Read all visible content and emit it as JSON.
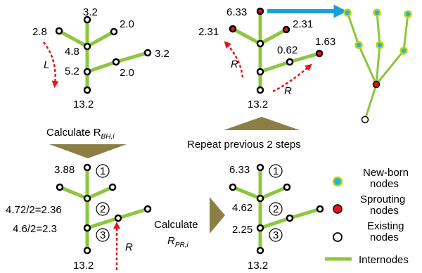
{
  "colors": {
    "internode": "#8dc63f",
    "existing_node_fill": "#ffffff",
    "sprouting_node_fill": "#e8141b",
    "newborn_node_fill": "#19b6e8",
    "newborn_node_ring": "#c8d400",
    "arrow_dashed": "#e8141b",
    "arrow_blue": "#19a0dc",
    "triangle": "#8b7f45"
  },
  "panel_tl": {
    "v_top": "3.2",
    "v_right_top": "2.0",
    "v_left": "2.8",
    "v_mid": "4.8",
    "v_low": "5.2",
    "v_right_far": "3.2",
    "v_right_near": "2.0",
    "v_base": "13.2",
    "arrow_label": "L"
  },
  "panel_tr": {
    "v_top": "6.33",
    "v_right_top": "2.31",
    "v_left": "2.31",
    "v_right_far": "1.63",
    "v_right_near": "0.62",
    "v_base": "13.2",
    "arrow_label_left": "R",
    "arrow_label_right": "R"
  },
  "step_calc_bh": {
    "text": "Calculate R",
    "sub": "BH,i"
  },
  "step_repeat": {
    "text": "Repeat previous 2 steps"
  },
  "panel_bl": {
    "v_top": "3.88",
    "v_mid": "4.72/2=2.36",
    "v_low": "4.6/2=2.3",
    "v_base": "13.2",
    "circ1": "1",
    "circ2": "2",
    "circ3": "3",
    "arrow_label": "R"
  },
  "step_calc_pr": {
    "line1": "Calculate",
    "text": "R",
    "sub": "PR,i"
  },
  "panel_br": {
    "v_top": "6.33",
    "v_mid": "4.62",
    "v_low": "2.25",
    "v_base": "13.2",
    "circ1": "1",
    "circ2": "2",
    "circ3": "3"
  },
  "legend": {
    "newborn": [
      "New-born",
      "nodes"
    ],
    "sprouting": [
      "Sprouting",
      "nodes"
    ],
    "existing": [
      "Existing",
      "nodes"
    ],
    "internodes": "Internodes"
  }
}
